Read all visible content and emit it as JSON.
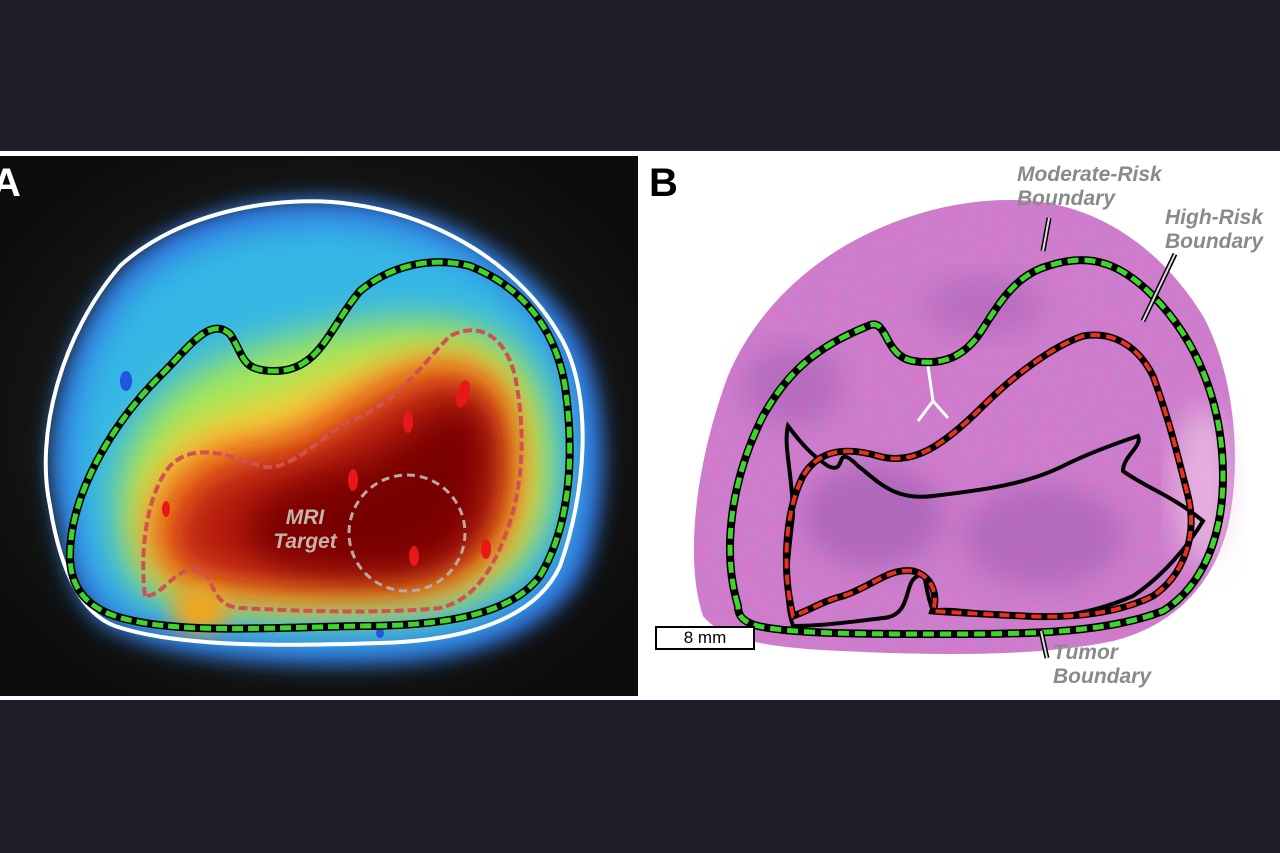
{
  "panel_a": {
    "letter": "A",
    "mri_target_line1": "MRI",
    "mri_target_line2": "Target"
  },
  "panel_b": {
    "letter": "B",
    "moderate_line1": "Moderate-Risk",
    "moderate_line2": "Boundary",
    "high_line1": "High-Risk",
    "high_line2": "Boundary",
    "tumor_line1": "Tumor",
    "tumor_line2": "Boundary",
    "scale": "8 mm"
  },
  "colors": {
    "background": "#1f1e2b",
    "moderate_risk": "#3fd62c",
    "high_risk": "#e8321f",
    "tumor": "#000000",
    "tissue": "#d877c9"
  }
}
